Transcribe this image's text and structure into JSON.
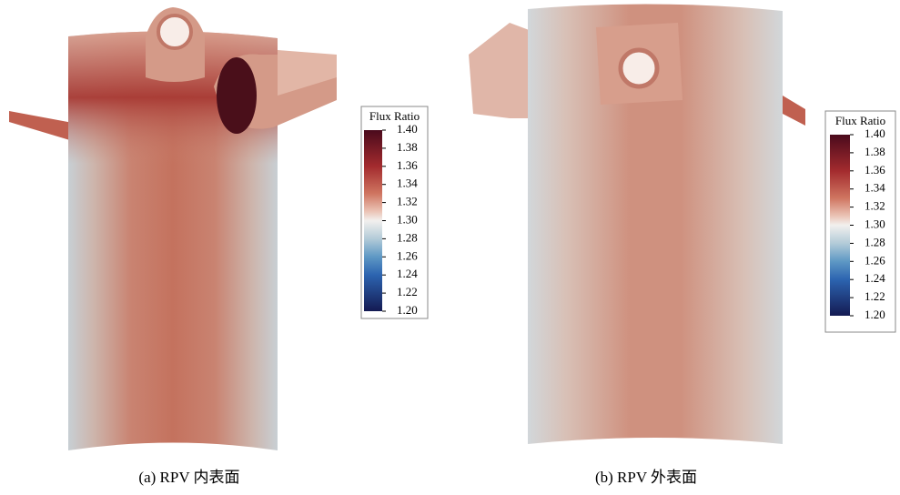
{
  "panels": [
    {
      "caption": "(a) RPV 内表面",
      "colorbar": {
        "title": "Flux Ratio",
        "lim": [
          1.2,
          1.4
        ],
        "ticks": [
          {
            "value": 1.4,
            "label": "1.40"
          },
          {
            "value": 1.38,
            "label": "1.38"
          },
          {
            "value": 1.36,
            "label": "1.36"
          },
          {
            "value": 1.34,
            "label": "1.34"
          },
          {
            "value": 1.32,
            "label": "1.32"
          },
          {
            "value": 1.3,
            "label": "1.30"
          },
          {
            "value": 1.28,
            "label": "1.28"
          },
          {
            "value": 1.26,
            "label": "1.26"
          },
          {
            "value": 1.24,
            "label": "1.24"
          },
          {
            "value": 1.22,
            "label": "1.22"
          },
          {
            "value": 1.2,
            "label": "1.20"
          }
        ]
      }
    },
    {
      "caption": "(b) RPV 外表面",
      "colorbar": {
        "title": "Flux Ratio",
        "lim": [
          1.2,
          1.4
        ],
        "ticks": [
          {
            "value": 1.4,
            "label": "1.40"
          },
          {
            "value": 1.38,
            "label": "1.38"
          },
          {
            "value": 1.36,
            "label": "1.36"
          },
          {
            "value": 1.34,
            "label": "1.34"
          },
          {
            "value": 1.32,
            "label": "1.32"
          },
          {
            "value": 1.3,
            "label": "1.30"
          },
          {
            "value": 1.28,
            "label": "1.28"
          },
          {
            "value": 1.26,
            "label": "1.26"
          },
          {
            "value": 1.24,
            "label": "1.24"
          },
          {
            "value": 1.22,
            "label": "1.22"
          },
          {
            "value": 1.2,
            "label": "1.20"
          }
        ]
      }
    }
  ]
}
